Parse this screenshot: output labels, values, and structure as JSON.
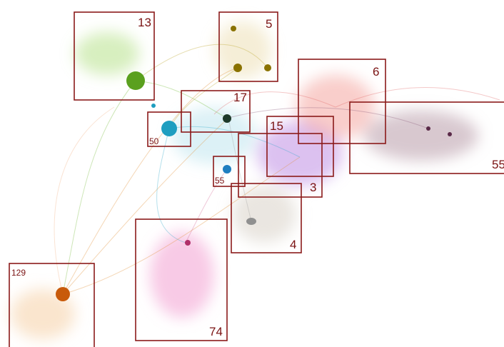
{
  "boxes": [
    {
      "label": "13"
    },
    {
      "label": "5"
    },
    {
      "label": "6"
    },
    {
      "label": "17"
    },
    {
      "label": "50"
    },
    {
      "label": "15"
    },
    {
      "label": "55"
    },
    {
      "label": "55"
    },
    {
      "label": "3"
    },
    {
      "label": "4"
    },
    {
      "label": "129"
    },
    {
      "label": "74"
    }
  ]
}
